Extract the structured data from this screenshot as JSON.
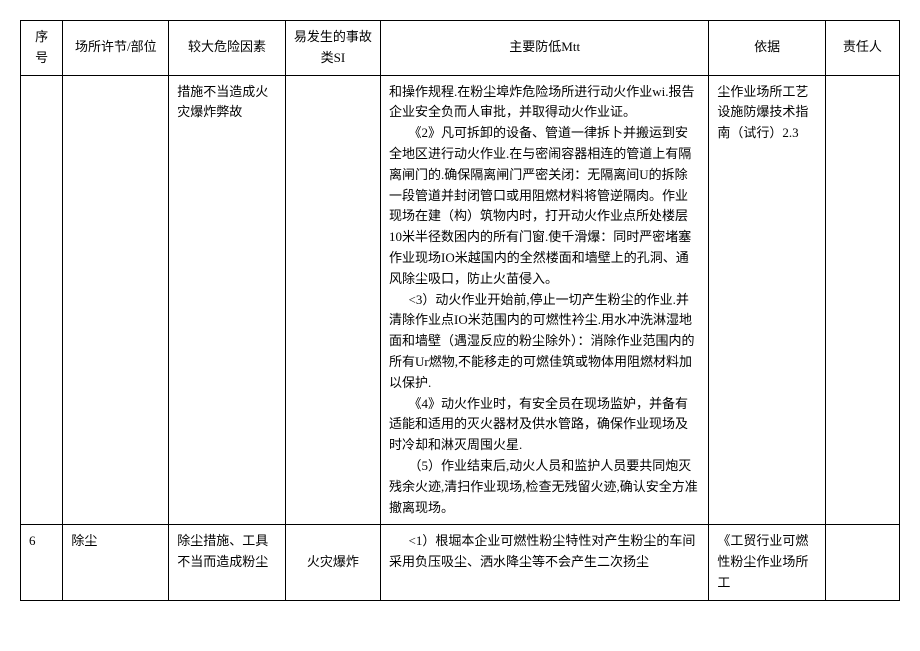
{
  "table": {
    "headers": {
      "seq": "序号",
      "place": "场所许节/部位",
      "risk": "较大危险因素",
      "accident": "易发生的事故类SI",
      "measure": "主要防低Mtt",
      "basis": "依据",
      "responsible": "责任人"
    },
    "rows": [
      {
        "seq": "",
        "place": "",
        "risk": "措施不当造成火灾爆炸弊故",
        "accident": "",
        "measure_lines": [
          "和操作规程.在粉尘埠炸危险场所进行动火作业wi.报告企业安全负而人审批，并取得动火作业证。",
          "《2》凡可拆卸的设备、管道一律拆卜并搬运到安全地区进行动火作业.在与密闹容器相连的管道上有隔离闸门的.确保隔离闸门严密关闭：无隔离间U的拆除一段管道并封闭管口或用阻燃材料将管逆隔肉。作业现场在建（构）筑物内时，打开动火作业点所处楼层10米半径数困内的所有门窗.使千滑爆：同时严密堵塞作业现场IO米越国内的全然楼面和墙壁上的孔洞、通风除尘吸口，防止火苗侵入。",
          "<3）动火作业开始前,停止一切产生粉尘的作业.并清除作业点IO米范围内的可燃性衿尘.用水冲洗淋湿地面和墙壁（遇湿反应的粉尘除外）：消除作业范围内的所有Ur燃物,不能移走的可燃佳筑或物体用阻燃材料加以保护.",
          "《4》动火作业时，有安全员在现场监妒，并备有适能和适用的灭火器材及供水管路，确保作业现场及时冷却和淋灭周囤火星.",
          "（5）作业结束后,动火人员和监护人员要共同炮灭残余火迹,清扫作业现场,检查无残留火迹,确认安全方准撤离现场。"
        ],
        "basis": "尘作业场所工艺设施防爆技术指南（试行）2.3",
        "responsible": ""
      },
      {
        "seq": "6",
        "place": "除尘",
        "risk": "除尘措施、工具不当而造成粉尘",
        "accident": "火灾爆炸",
        "measure": "<1）根堀本企业可燃性粉尘特性对产生粉尘的车间采用负压吸尘、洒水降尘等不会产生二次扬尘",
        "basis": "《工贸行业可燃性粉尘作业场所工",
        "responsible": ""
      }
    ]
  },
  "style": {
    "font_size": 13,
    "line_height": 1.6,
    "border_color": "#000000",
    "background_color": "#ffffff",
    "text_color": "#000000"
  }
}
